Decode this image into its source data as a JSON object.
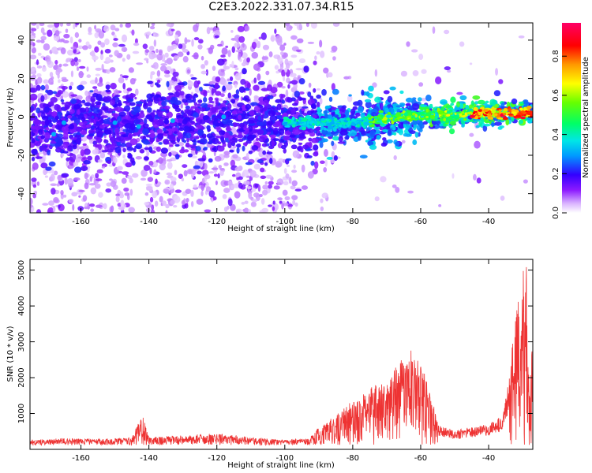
{
  "title": "C2E3.2022.331.07.34.R15",
  "chart_data": [
    {
      "type": "heatmap",
      "xlabel": "Height of straight line (km)",
      "ylabel": "Frequency (Hz)",
      "xlim": [
        -175,
        -27
      ],
      "ylim": [
        -50,
        49
      ],
      "xticks": [
        -160,
        -140,
        -120,
        -100,
        -80,
        -60,
        -40
      ],
      "yticks": [
        -40,
        -20,
        0,
        20,
        40
      ],
      "colorbar": {
        "label": "Normalized spectral amplitude",
        "range": [
          0,
          0.97
        ],
        "ticks": [
          0.0,
          0.2,
          0.4,
          0.6,
          0.8
        ]
      },
      "ridge": {
        "description_points": [
          {
            "x": -170,
            "y": -5
          },
          {
            "x": -140,
            "y": -3
          },
          {
            "x": -120,
            "y": -2
          },
          {
            "x": -95,
            "y": -3
          },
          {
            "x": -80,
            "y": -3
          },
          {
            "x": -65,
            "y": 0
          },
          {
            "x": -55,
            "y": 1
          },
          {
            "x": -40,
            "y": 2
          },
          {
            "x": -28,
            "y": 2
          }
        ]
      }
    },
    {
      "type": "line",
      "color": "#ee3333",
      "xlabel": "Height of straight line (km)",
      "ylabel": "SNR (10 * v/v)",
      "xlim": [
        -175,
        -27
      ],
      "ylim": [
        0,
        5300
      ],
      "xticks": [
        -160,
        -140,
        -120,
        -100,
        -80,
        -60,
        -40
      ],
      "yticks": [
        1000,
        2000,
        3000,
        4000,
        5000
      ],
      "envelope": [
        {
          "x": -175,
          "y": 250
        },
        {
          "x": -165,
          "y": 300
        },
        {
          "x": -155,
          "y": 280
        },
        {
          "x": -145,
          "y": 320
        },
        {
          "x": -142,
          "y": 1000
        },
        {
          "x": -140,
          "y": 350
        },
        {
          "x": -130,
          "y": 380
        },
        {
          "x": -120,
          "y": 420
        },
        {
          "x": -110,
          "y": 330
        },
        {
          "x": -100,
          "y": 260
        },
        {
          "x": -93,
          "y": 300
        },
        {
          "x": -90,
          "y": 600
        },
        {
          "x": -85,
          "y": 900
        },
        {
          "x": -80,
          "y": 1300
        },
        {
          "x": -75,
          "y": 1700
        },
        {
          "x": -70,
          "y": 1900
        },
        {
          "x": -65,
          "y": 2500
        },
        {
          "x": -62,
          "y": 2700
        },
        {
          "x": -58,
          "y": 1900
        },
        {
          "x": -55,
          "y": 700
        },
        {
          "x": -50,
          "y": 500
        },
        {
          "x": -45,
          "y": 600
        },
        {
          "x": -40,
          "y": 700
        },
        {
          "x": -36,
          "y": 900
        },
        {
          "x": -34,
          "y": 2000
        },
        {
          "x": -32,
          "y": 3800
        },
        {
          "x": -30,
          "y": 4600
        },
        {
          "x": -29,
          "y": 5300
        },
        {
          "x": -28,
          "y": 1500
        },
        {
          "x": -27,
          "y": 3300
        }
      ]
    }
  ]
}
